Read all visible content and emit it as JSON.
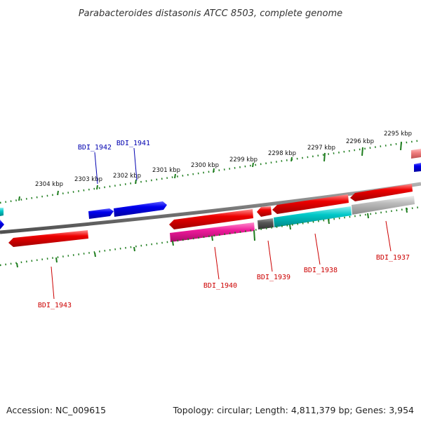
{
  "title": "Parabacteroides distasonis ATCC 8503, complete genome",
  "footer": {
    "accession": "Accession: NC_009615",
    "summary": "Topology: circular; Length: 4,811,379 bp; Genes: 3,954"
  },
  "colors": {
    "backbone": "#7a7a7a",
    "ruler_ticks": "#1e7d1e",
    "label_forward": "#0000b0",
    "label_reverse": "#cc0000"
  },
  "scale_labels": [
    "2304 kbp",
    "2303 kbp",
    "2302 kbp",
    "2301 kbp",
    "2300 kbp",
    "2299 kbp",
    "2298 kbp",
    "2297 kbp",
    "2296 kbp",
    "2295 kbp"
  ],
  "gene_labels": [
    {
      "name": "BDI_1943",
      "strand": "reverse"
    },
    {
      "name": "BDI_1942",
      "strand": "forward"
    },
    {
      "name": "BDI_1941",
      "strand": "forward"
    },
    {
      "name": "BDI_1940",
      "strand": "reverse"
    },
    {
      "name": "BDI_1939",
      "strand": "reverse"
    },
    {
      "name": "BDI_1938",
      "strand": "reverse"
    },
    {
      "name": "BDI_1937",
      "strand": "reverse"
    }
  ],
  "feature_colors": {
    "forward_cds": "#0000ee",
    "reverse_cds": "#ee0000",
    "cyan_track": "#00bcbc",
    "magenta_track": "#ee1a9a",
    "dark_grey_track": "#555555",
    "light_grey_track": "#b8b8b8",
    "pink_track": "#f08080"
  }
}
